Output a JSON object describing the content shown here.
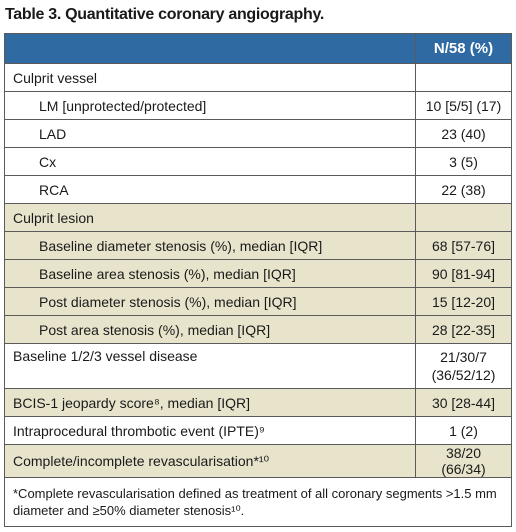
{
  "title": "Table 3. Quantitative coronary angiography.",
  "table": {
    "column_header": "N/58 (%)",
    "rows": [
      {
        "label": "Culprit vessel",
        "items": [
          [
            "LM [unprotected/protected]",
            "10 [5/5] (17)"
          ],
          [
            "LAD",
            "23 (40)"
          ],
          [
            "Cx",
            "3 (5)"
          ],
          [
            "RCA",
            "22 (38)"
          ]
        ]
      },
      {
        "label": "Culprit lesion",
        "items": [
          [
            "Baseline diameter stenosis (%), median [IQR]",
            "68 [57-76]"
          ],
          [
            "Baseline area stenosis (%), median [IQR]",
            "90 [81-94]"
          ],
          [
            "Post diameter stenosis (%), median [IQR]",
            "15 [12-20]"
          ],
          [
            "Post area stenosis (%), median [IQR]",
            "28 [22-35]"
          ]
        ]
      },
      {
        "label": "Baseline 1/2/3 vessel disease",
        "value": "21/30/7\n(36/52/12)"
      },
      {
        "label": "BCIS-1 jeopardy score⁸, median [IQR]",
        "value": "30 [28-44]"
      },
      {
        "label": "Intraprocedural thrombotic event (IPTE)⁹",
        "value": "1 (2)"
      },
      {
        "label": "Complete/incomplete revascularisation*¹⁰",
        "value": "38/20 (66/34)"
      }
    ],
    "footnote": "*Complete revascularisation defined as treatment of all coronary segments >1.5 mm diameter and ≥50% diameter stenosis¹⁰."
  }
}
